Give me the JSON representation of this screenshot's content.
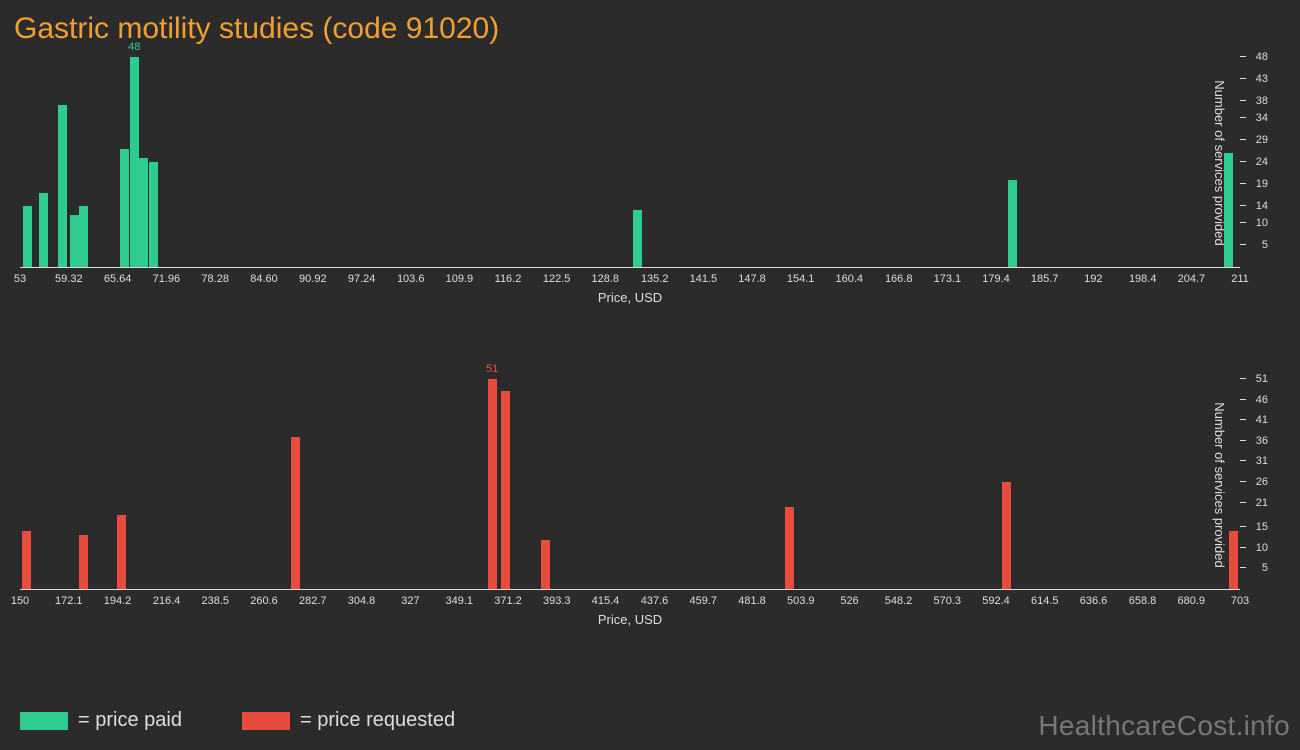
{
  "title": "Gastric motility studies (code 91020)",
  "watermark": "HealthcareCost.info",
  "colors": {
    "paid": "#2ecc8f",
    "requested": "#e74c3c",
    "bg": "#2b2b2b",
    "text": "#dddddd",
    "title": "#f0a030"
  },
  "legend": [
    {
      "swatch": "#2ecc8f",
      "label": "= price paid"
    },
    {
      "swatch": "#e74c3c",
      "label": "= price requested"
    }
  ],
  "chart1": {
    "type": "bar",
    "color": "#2ecc8f",
    "xlabel": "Price, USD",
    "ylabel": "Number of services provided",
    "xmin": 53,
    "xmax": 211,
    "ymax": 48,
    "xticks": [
      53,
      59.32,
      65.64,
      71.96,
      78.28,
      84.6,
      90.92,
      97.24,
      103.6,
      109.9,
      116.2,
      122.5,
      128.8,
      135.2,
      141.5,
      147.8,
      154.1,
      160.4,
      166.8,
      173.1,
      179.4,
      185.7,
      192,
      198.4,
      204.7,
      211
    ],
    "xtick_labels": [
      "53",
      "59.32",
      "65.64",
      "71.96",
      "78.28",
      "84.60",
      "90.92",
      "97.24",
      "103.6",
      "109.9",
      "116.2",
      "122.5",
      "128.8",
      "135.2",
      "141.5",
      "147.8",
      "154.1",
      "160.4",
      "166.8",
      "173.1",
      "179.4",
      "185.7",
      "192",
      "198.4",
      "204.7",
      "211"
    ],
    "yticks": [
      5,
      10,
      14,
      19,
      24,
      29,
      34,
      38,
      43,
      48
    ],
    "bars": [
      {
        "x": 54.0,
        "y": 14
      },
      {
        "x": 56.0,
        "y": 17
      },
      {
        "x": 58.5,
        "y": 37
      },
      {
        "x": 60.0,
        "y": 12
      },
      {
        "x": 61.2,
        "y": 14
      },
      {
        "x": 66.5,
        "y": 27
      },
      {
        "x": 67.8,
        "y": 48,
        "label": "48"
      },
      {
        "x": 69.0,
        "y": 25
      },
      {
        "x": 70.3,
        "y": 24
      },
      {
        "x": 133.0,
        "y": 13
      },
      {
        "x": 181.5,
        "y": 20
      },
      {
        "x": 209.5,
        "y": 26
      }
    ]
  },
  "chart2": {
    "type": "bar",
    "color": "#e74c3c",
    "xlabel": "Price, USD",
    "ylabel": "Number of services provided",
    "xmin": 150,
    "xmax": 703,
    "ymax": 51,
    "xticks": [
      150,
      172.1,
      194.2,
      216.4,
      238.5,
      260.6,
      282.7,
      304.8,
      327,
      349.1,
      371.2,
      393.3,
      415.4,
      437.6,
      459.7,
      481.8,
      503.9,
      526,
      548.2,
      570.3,
      592.4,
      614.5,
      636.6,
      658.8,
      680.9,
      703
    ],
    "xtick_labels": [
      "150",
      "172.1",
      "194.2",
      "216.4",
      "238.5",
      "260.6",
      "282.7",
      "304.8",
      "327",
      "349.1",
      "371.2",
      "393.3",
      "415.4",
      "437.6",
      "459.7",
      "481.8",
      "503.9",
      "526",
      "548.2",
      "570.3",
      "592.4",
      "614.5",
      "636.6",
      "658.8",
      "680.9",
      "703"
    ],
    "yticks": [
      5,
      10,
      15,
      21,
      26,
      31,
      36,
      41,
      46,
      51
    ],
    "bars": [
      {
        "x": 153,
        "y": 14
      },
      {
        "x": 179,
        "y": 13
      },
      {
        "x": 196,
        "y": 18
      },
      {
        "x": 275,
        "y": 37
      },
      {
        "x": 364,
        "y": 51,
        "label": "51"
      },
      {
        "x": 370,
        "y": 48
      },
      {
        "x": 388,
        "y": 12
      },
      {
        "x": 499,
        "y": 20
      },
      {
        "x": 597,
        "y": 26
      },
      {
        "x": 700,
        "y": 14
      }
    ]
  }
}
